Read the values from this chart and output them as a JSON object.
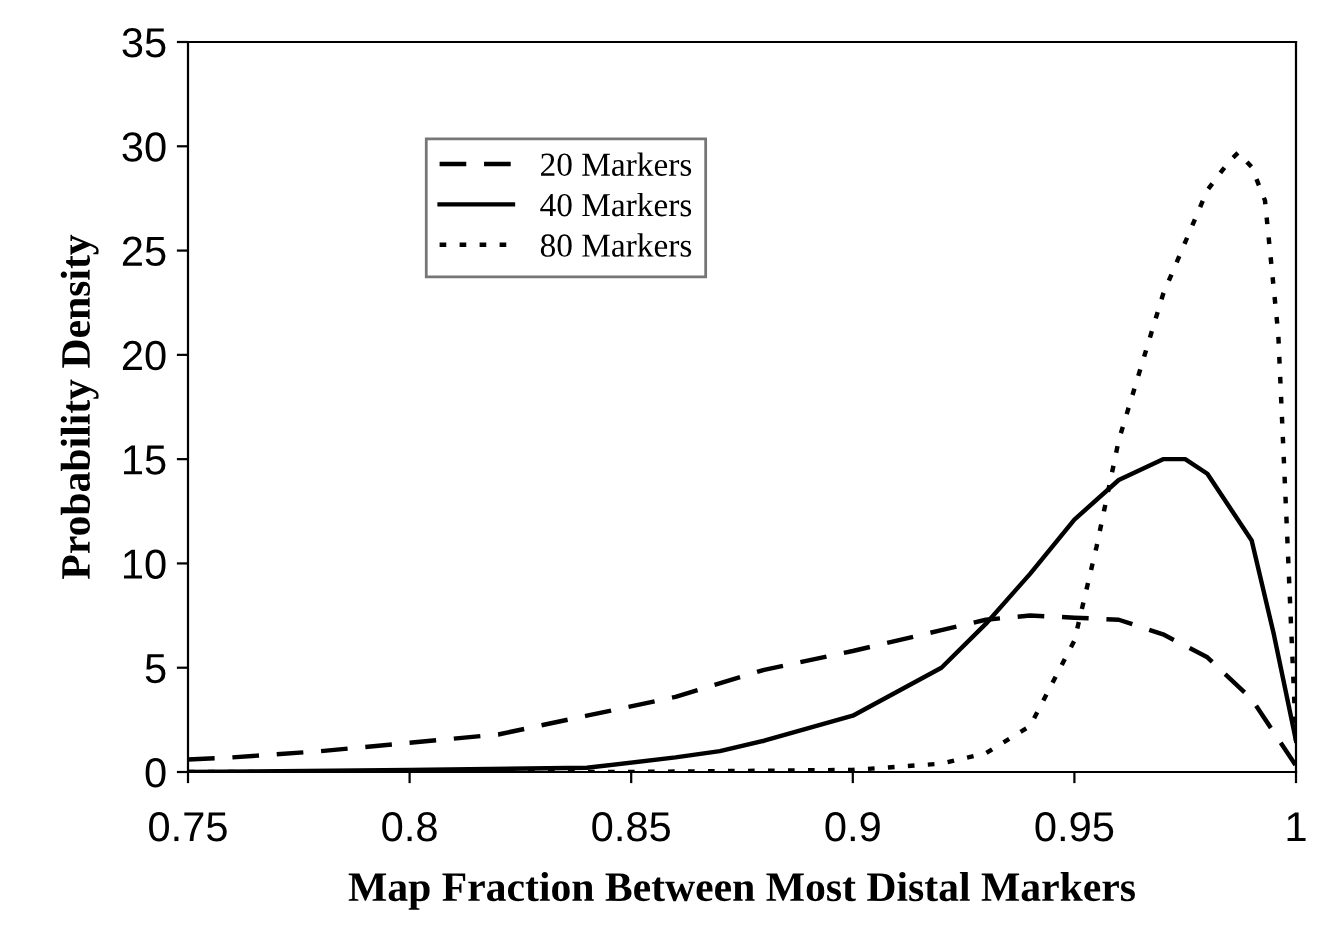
{
  "chart_data": {
    "type": "line",
    "xlabel": "Map Fraction Between Most Distal Markers",
    "ylabel": "Probability Density",
    "xlim": [
      0.75,
      1.0
    ],
    "ylim": [
      0,
      35
    ],
    "xticks": [
      0.75,
      0.8,
      0.85,
      0.9,
      0.95,
      1
    ],
    "yticks": [
      0,
      5,
      10,
      15,
      20,
      25,
      30,
      35
    ],
    "grid": false,
    "legend": "top left",
    "marker": "none",
    "series": [
      {
        "name": "20 Markers",
        "color": "#000000",
        "line_style": "dashed",
        "x": [
          0.75,
          0.76,
          0.78,
          0.8,
          0.82,
          0.84,
          0.86,
          0.88,
          0.9,
          0.92,
          0.93,
          0.94,
          0.95,
          0.96,
          0.97,
          0.98,
          0.99,
          1.0
        ],
        "values": [
          0.6,
          0.7,
          1.0,
          1.4,
          1.8,
          2.7,
          3.6,
          4.9,
          5.8,
          6.8,
          7.3,
          7.5,
          7.4,
          7.3,
          6.6,
          5.5,
          3.5,
          0.3
        ]
      },
      {
        "name": "40 Markers",
        "color": "#000000",
        "line_style": "solid",
        "x": [
          0.75,
          0.8,
          0.84,
          0.86,
          0.87,
          0.88,
          0.9,
          0.92,
          0.93,
          0.94,
          0.95,
          0.96,
          0.97,
          0.975,
          0.98,
          0.99,
          0.995,
          1.0
        ],
        "values": [
          0,
          0.1,
          0.2,
          0.7,
          1.0,
          1.5,
          2.7,
          5.0,
          7.1,
          9.5,
          12.1,
          14.0,
          15.0,
          15.0,
          14.3,
          11.1,
          6.6,
          1.5
        ]
      },
      {
        "name": "80 Markers",
        "color": "#000000",
        "line_style": "dotted",
        "x": [
          0.75,
          0.85,
          0.9,
          0.92,
          0.93,
          0.94,
          0.95,
          0.955,
          0.96,
          0.97,
          0.98,
          0.985,
          0.987,
          0.99,
          0.993,
          0.996,
          0.998,
          1.0
        ],
        "values": [
          0,
          0,
          0.1,
          0.4,
          0.9,
          2.2,
          6.3,
          10.8,
          15.9,
          22.9,
          27.9,
          29.3,
          29.7,
          29.0,
          27.4,
          21.0,
          11.4,
          1.5
        ]
      }
    ]
  }
}
